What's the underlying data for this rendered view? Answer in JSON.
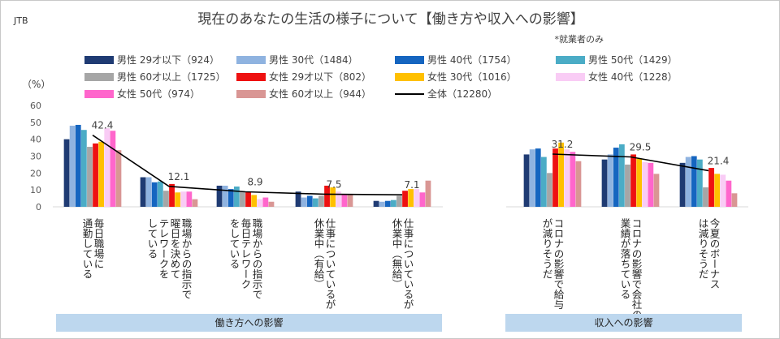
{
  "corner_label": "JTB",
  "chart_data": {
    "type": "bar",
    "title": "現在のあなたの生活の様子について【働き方や収入への影響】",
    "subtitle": "*就業者のみ",
    "ylabel": "（%）",
    "ylim": [
      0,
      60
    ],
    "yticks": [
      0,
      10,
      20,
      30,
      40,
      50,
      60
    ],
    "grid": false,
    "legend_position": "top",
    "categories": [
      "毎日職場に通勤している",
      "職場からの指示で曜日を決めてテレワークをしている",
      "職場からの指示で毎日テレワークをしている",
      "仕事についているが休業中（有給）",
      "仕事についているが休業中（無給）",
      "コロナの影響で給与が減りそうだ",
      "コロナの影響で会社の業績が落ちている",
      "今夏のボーナスは減りそうだ"
    ],
    "category_lines": [
      [
        "毎日職場に",
        "通勤している"
      ],
      [
        "職場からの指示で",
        "曜日を決めて",
        "テレワークを",
        "している"
      ],
      [
        "職場からの指示で",
        "毎日テレワーク",
        "をしている"
      ],
      [
        "仕事についているが",
        "休業中（有給）"
      ],
      [
        "仕事についているが",
        "休業中（無給）"
      ],
      [
        "コロナの影響で給与",
        "が減りそうだ"
      ],
      [
        "コロナの影響で会社の",
        "業績が落ちている"
      ],
      [
        "今夏のボーナス",
        "は減りそうだ"
      ]
    ],
    "groups": [
      {
        "label": "働き方への影響",
        "categories": [
          0,
          1,
          2,
          3,
          4
        ]
      },
      {
        "label": "収入への影響",
        "categories": [
          5,
          6,
          7
        ]
      }
    ],
    "series": [
      {
        "name": "男性 29才以下（924）",
        "color": "#1f3b73",
        "values": [
          40,
          17.5,
          12.5,
          9,
          3.5,
          31,
          28,
          26
        ]
      },
      {
        "name": "男性 30代（1484）",
        "color": "#8fb3e0",
        "values": [
          48,
          17.5,
          12.5,
          5.5,
          3,
          34,
          31,
          29.5
        ]
      },
      {
        "name": "男性 40代（1754）",
        "color": "#1565c0",
        "values": [
          48.5,
          14.5,
          10.5,
          6.5,
          3.5,
          34.5,
          35,
          30
        ]
      },
      {
        "name": "男性 50代（1429）",
        "color": "#4bacc6",
        "values": [
          45.5,
          15,
          12,
          5,
          4,
          29.5,
          37,
          28
        ]
      },
      {
        "name": "男性 60才以上（1725）",
        "color": "#a6a6a6",
        "values": [
          35.5,
          9.5,
          9,
          6.5,
          6.5,
          20,
          25,
          11.5
        ]
      },
      {
        "name": "女性 29才以下（802）",
        "color": "#ee1111",
        "values": [
          37.5,
          13.5,
          9,
          12.5,
          9.5,
          34.5,
          31,
          23
        ]
      },
      {
        "name": "女性 30代（1016）",
        "color": "#ffc000",
        "values": [
          38.5,
          8.5,
          7,
          11.5,
          10.5,
          38,
          28.5,
          19.5
        ]
      },
      {
        "name": "女性 40代（1228）",
        "color": "#f9ccf5",
        "values": [
          46.5,
          9,
          4.5,
          9,
          10.5,
          34,
          26.5,
          19
        ]
      },
      {
        "name": "女性 50代（974）",
        "color": "#ff66cc",
        "values": [
          45,
          9,
          5.5,
          7.5,
          8.5,
          32.5,
          26,
          15.5
        ]
      },
      {
        "name": "女性 60才以上（944）",
        "color": "#d99694",
        "values": [
          33.5,
          4.5,
          3,
          7.5,
          15.5,
          27,
          19.5,
          8
        ]
      }
    ],
    "total": {
      "name": "全体（12280）",
      "color": "#000000",
      "values": [
        42.4,
        12.1,
        8.9,
        7.5,
        7.1,
        31.2,
        29.5,
        21.4
      ],
      "value_labels": [
        "42.4",
        "12.1",
        "8.9",
        "7.5",
        "7.1",
        "31.2",
        "29.5",
        "21.4"
      ]
    }
  }
}
